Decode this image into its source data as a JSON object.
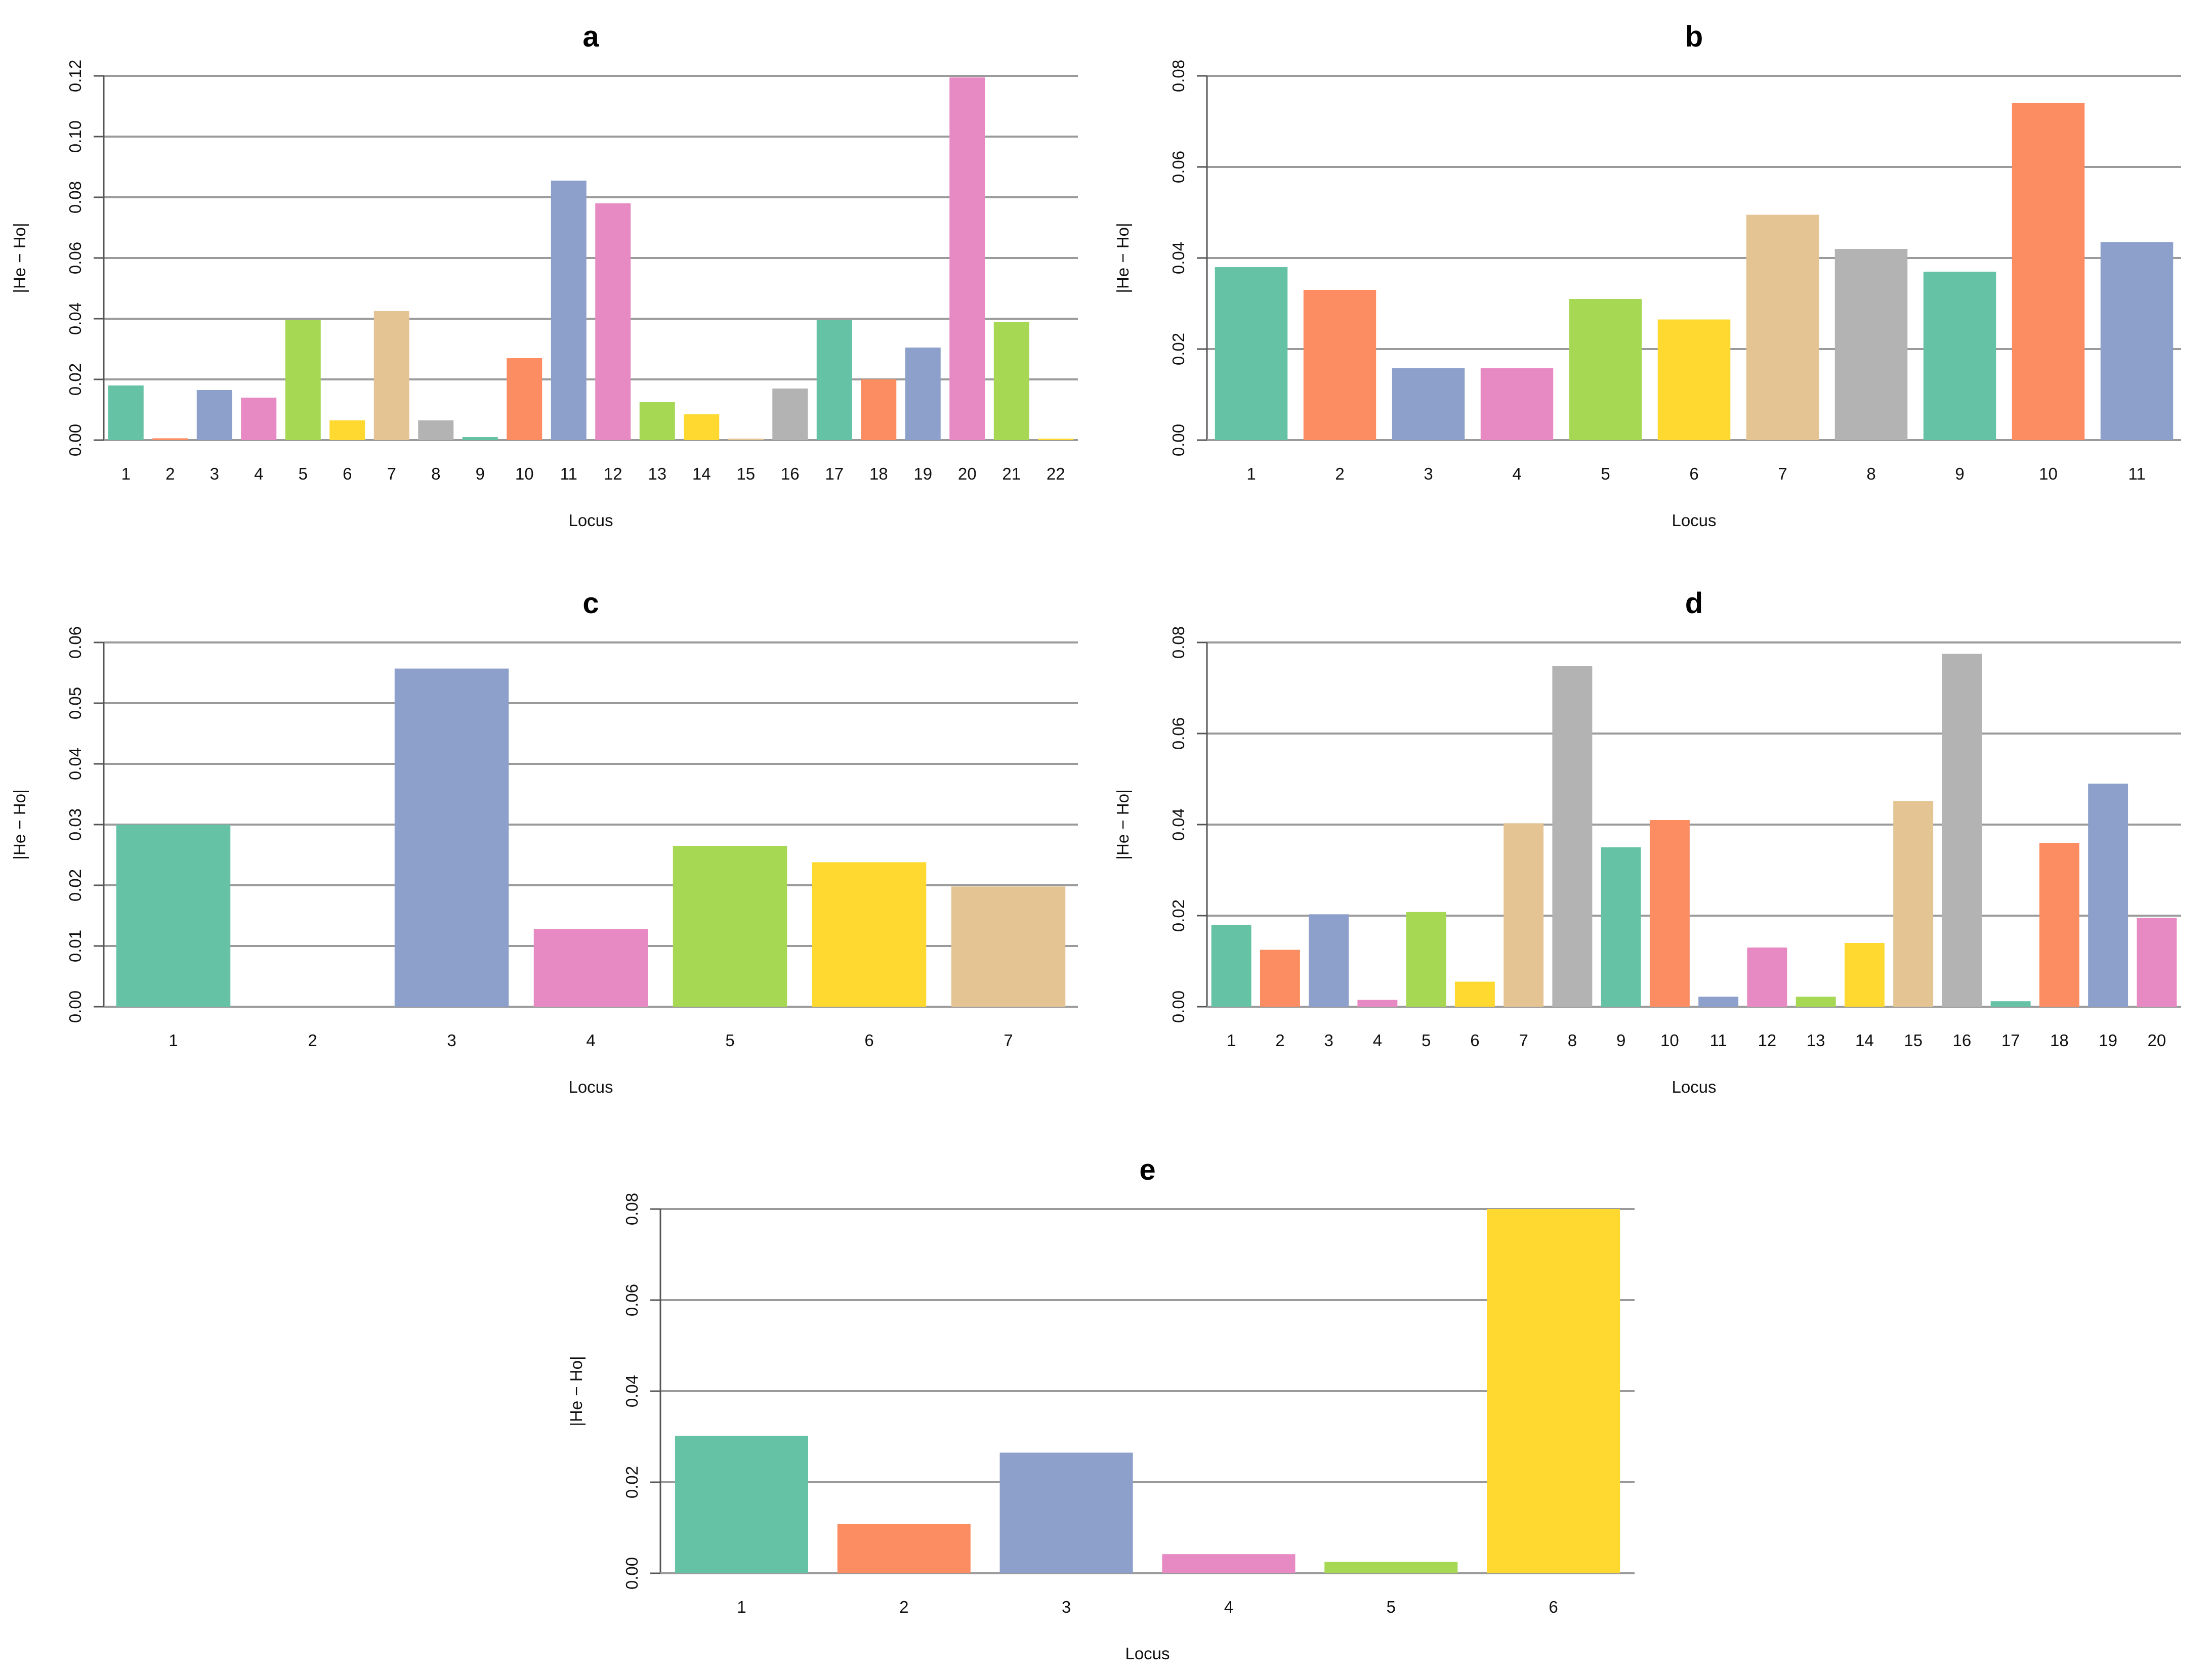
{
  "colors": [
    "#66c2a5",
    "#fc8d62",
    "#8da0cb",
    "#e78ac3",
    "#a6d854",
    "#ffd92f",
    "#e5c494",
    "#b3b3b3"
  ],
  "chart_data": [
    {
      "id": "a",
      "type": "bar",
      "title": "a",
      "xlabel": "Locus",
      "ylabel": "|He − Ho|",
      "ylim": [
        0,
        0.12
      ],
      "yticks": [
        "0.00",
        "0.02",
        "0.04",
        "0.06",
        "0.08",
        "0.10",
        "0.12"
      ],
      "categories": [
        "1",
        "2",
        "3",
        "4",
        "5",
        "6",
        "7",
        "8",
        "9",
        "10",
        "11",
        "12",
        "13",
        "14",
        "15",
        "16",
        "17",
        "18",
        "19",
        "20",
        "21",
        "22"
      ],
      "values": [
        0.018,
        0.0006,
        0.0165,
        0.014,
        0.0395,
        0.0065,
        0.0425,
        0.0065,
        0.001,
        0.027,
        0.0855,
        0.078,
        0.0125,
        0.0085,
        0.0005,
        0.017,
        0.0395,
        0.02,
        0.0305,
        0.1195,
        0.039,
        0.0005
      ],
      "grid": true
    },
    {
      "id": "b",
      "type": "bar",
      "title": "b",
      "xlabel": "Locus",
      "ylabel": "|He − Ho|",
      "ylim": [
        0,
        0.08
      ],
      "yticks": [
        "0.00",
        "0.02",
        "0.04",
        "0.06",
        "0.08"
      ],
      "categories": [
        "1",
        "2",
        "3",
        "4",
        "5",
        "6",
        "7",
        "8",
        "9",
        "10",
        "11"
      ],
      "values": [
        0.038,
        0.033,
        0.0158,
        0.0158,
        0.031,
        0.0265,
        0.0495,
        0.042,
        0.037,
        0.074,
        0.0435
      ],
      "grid": true
    },
    {
      "id": "c",
      "type": "bar",
      "title": "c",
      "xlabel": "Locus",
      "ylabel": "|He − Ho|",
      "ylim": [
        0,
        0.06
      ],
      "yticks": [
        "0.00",
        "0.01",
        "0.02",
        "0.03",
        "0.04",
        "0.05",
        "0.06"
      ],
      "categories": [
        "1",
        "2",
        "3",
        "4",
        "5",
        "6",
        "7"
      ],
      "values": [
        0.03,
        0.0,
        0.0557,
        0.0128,
        0.0265,
        0.0238,
        0.0198
      ],
      "grid": true
    },
    {
      "id": "d",
      "type": "bar",
      "title": "d",
      "xlabel": "Locus",
      "ylabel": "|He − Ho|",
      "ylim": [
        0,
        0.08
      ],
      "yticks": [
        "0.00",
        "0.02",
        "0.04",
        "0.06",
        "0.08"
      ],
      "categories": [
        "1",
        "2",
        "3",
        "4",
        "5",
        "6",
        "7",
        "8",
        "9",
        "10",
        "11",
        "12",
        "13",
        "14",
        "15",
        "16",
        "17",
        "18",
        "19",
        "20"
      ],
      "values": [
        0.018,
        0.0125,
        0.0203,
        0.0015,
        0.0208,
        0.0055,
        0.0403,
        0.0748,
        0.035,
        0.041,
        0.0022,
        0.013,
        0.0022,
        0.014,
        0.0452,
        0.0775,
        0.0012,
        0.036,
        0.049,
        0.0195
      ],
      "grid": true
    },
    {
      "id": "e",
      "type": "bar",
      "title": "e",
      "xlabel": "Locus",
      "ylabel": "|He − Ho|",
      "ylim": [
        0,
        0.08
      ],
      "yticks": [
        "0.00",
        "0.02",
        "0.04",
        "0.06",
        "0.08"
      ],
      "categories": [
        "1",
        "2",
        "3",
        "4",
        "5",
        "6"
      ],
      "values": [
        0.0302,
        0.0108,
        0.0265,
        0.0042,
        0.0025,
        0.08
      ],
      "grid": true
    }
  ]
}
